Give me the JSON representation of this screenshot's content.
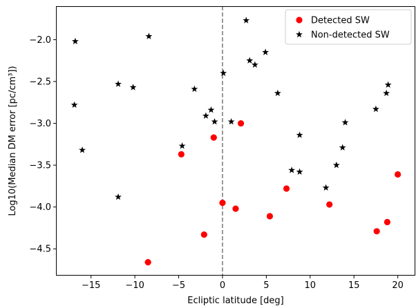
{
  "chart_data": {
    "type": "scatter",
    "title": "",
    "xlabel": "Ecliptic latitude [deg]",
    "ylabel": "Log10(Median DM error [pc/cm³])",
    "xlim": [
      -19,
      22
    ],
    "ylim": [
      -4.82,
      -1.6
    ],
    "xticks": [
      -15,
      -10,
      -5,
      0,
      5,
      10,
      15,
      20
    ],
    "yticks": [
      -2.0,
      -2.5,
      -3.0,
      -3.5,
      -4.0,
      -4.5
    ],
    "xtick_labels": [
      "−15",
      "−10",
      "−5",
      "0",
      "5",
      "10",
      "15",
      "20"
    ],
    "ytick_labels": [
      "−2.0",
      "−2.5",
      "−3.0",
      "−3.5",
      "−4.0",
      "−4.5"
    ],
    "vline": {
      "x": 0,
      "style": "dashed",
      "color": "#808080"
    },
    "grid": false,
    "legend_position": "top-right",
    "series": [
      {
        "name": "Detected SW",
        "marker": "circle",
        "color": "#ff0000",
        "points": [
          [
            -8.5,
            -4.66
          ],
          [
            -4.7,
            -3.37
          ],
          [
            -1.0,
            -3.17
          ],
          [
            2.1,
            -3.0
          ],
          [
            -2.1,
            -4.33
          ],
          [
            0.0,
            -3.95
          ],
          [
            1.5,
            -4.02
          ],
          [
            5.4,
            -4.11
          ],
          [
            7.3,
            -3.78
          ],
          [
            12.2,
            -3.97
          ],
          [
            17.6,
            -4.29
          ],
          [
            18.8,
            -4.18
          ],
          [
            20.0,
            -3.61
          ]
        ]
      },
      {
        "name": "Non-detected SW",
        "marker": "star",
        "color": "#000000",
        "points": [
          [
            -16.8,
            -2.02
          ],
          [
            -16.9,
            -2.78
          ],
          [
            -16.0,
            -3.32
          ],
          [
            -11.9,
            -2.53
          ],
          [
            -11.9,
            -3.88
          ],
          [
            -10.2,
            -2.57
          ],
          [
            -8.4,
            -1.96
          ],
          [
            -4.6,
            -3.27
          ],
          [
            -3.2,
            -2.59
          ],
          [
            -1.9,
            -2.91
          ],
          [
            -1.3,
            -2.84
          ],
          [
            -0.9,
            -2.98
          ],
          [
            0.1,
            -2.4
          ],
          [
            1.0,
            -2.98
          ],
          [
            2.7,
            -1.77
          ],
          [
            3.1,
            -2.25
          ],
          [
            3.7,
            -2.3
          ],
          [
            4.9,
            -2.15
          ],
          [
            6.3,
            -2.64
          ],
          [
            7.9,
            -3.56
          ],
          [
            8.8,
            -3.14
          ],
          [
            8.8,
            -3.58
          ],
          [
            11.8,
            -3.77
          ],
          [
            13.0,
            -3.5
          ],
          [
            13.7,
            -3.29
          ],
          [
            14.0,
            -2.99
          ],
          [
            17.5,
            -2.83
          ],
          [
            18.7,
            -2.64
          ],
          [
            18.9,
            -2.54
          ]
        ]
      }
    ]
  }
}
